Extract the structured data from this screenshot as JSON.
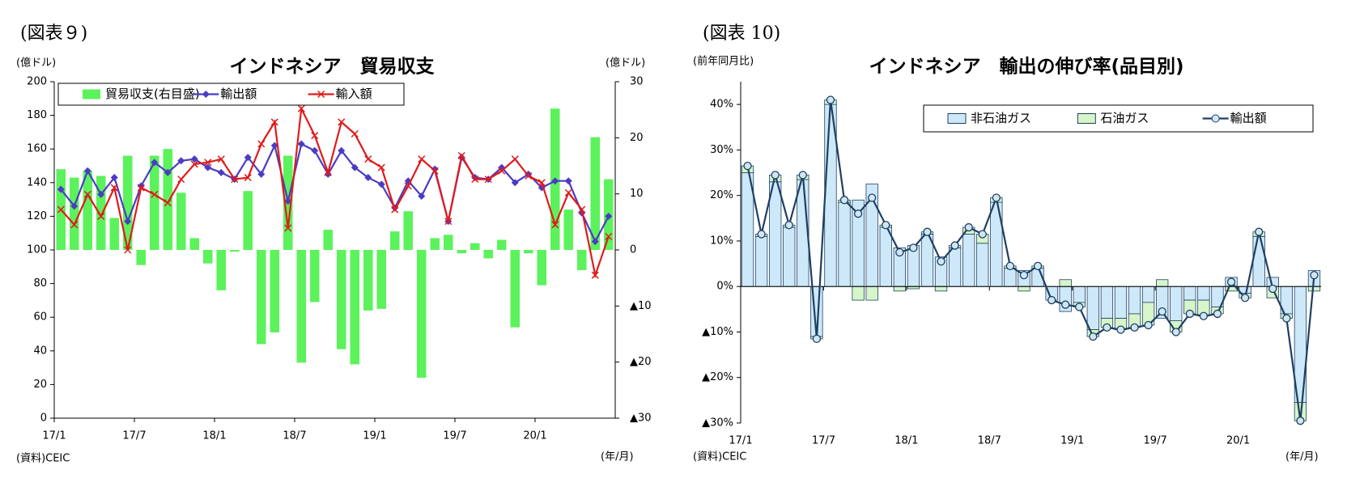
{
  "chart_data": [
    {
      "type": "combo",
      "figure_label": "(図表９)",
      "title": "インドネシア　貿易収支",
      "y_label": "(億ドル)",
      "y2_label": "(億ドル)",
      "x_label": "(年/月)",
      "source": "(資料)CEIC",
      "categories": [
        "17/1",
        null,
        null,
        null,
        null,
        null,
        "17/7",
        null,
        null,
        null,
        null,
        null,
        "18/1",
        null,
        null,
        null,
        null,
        null,
        "18/7",
        null,
        null,
        null,
        null,
        null,
        "19/1",
        null,
        null,
        null,
        null,
        null,
        "19/7",
        null,
        null,
        null,
        null,
        null,
        "20/1",
        null,
        null,
        null,
        null,
        null
      ],
      "ylim": [
        0,
        200
      ],
      "yticks": [
        0,
        20,
        40,
        60,
        80,
        100,
        120,
        140,
        160,
        180,
        200
      ],
      "y2lim": [
        -30,
        30
      ],
      "y2ticks": [
        {
          "value": -30,
          "label": "▲30"
        },
        {
          "value": -20,
          "label": "▲20"
        },
        {
          "value": -10,
          "label": "▲10"
        },
        0,
        10,
        20,
        30
      ],
      "series": [
        {
          "name": "貿易収支(右目盛)",
          "kind": "bar",
          "axis": "y2",
          "color": "#5cf25c",
          "values": [
            14.4,
            12.9,
            14.1,
            13.2,
            5.7,
            16.8,
            -2.7,
            16.8,
            18,
            10.2,
            2.1,
            -2.4,
            -7.2,
            -0.3,
            10.5,
            -16.8,
            -14.7,
            16.8,
            -20.1,
            -9.3,
            3.6,
            -17.7,
            -20.4,
            -10.8,
            -10.5,
            3.3,
            6.9,
            -22.8,
            2.1,
            2.7,
            -0.6,
            1.2,
            -1.5,
            1.8,
            -13.8,
            -0.6,
            -6.3,
            25.2,
            7.2,
            -3.6,
            20.1,
            12.6
          ]
        },
        {
          "name": "輸出額",
          "kind": "line",
          "marker": "diamond",
          "color": "#4a3cc4",
          "values": [
            136,
            126,
            147,
            133,
            143,
            117,
            138,
            152,
            146,
            153,
            154,
            149,
            146,
            142,
            155,
            145,
            162,
            129,
            163,
            159,
            145,
            159,
            149,
            143,
            139,
            125,
            141,
            132,
            148,
            117,
            155,
            143,
            142,
            149,
            140,
            145,
            137,
            141,
            141,
            122,
            105,
            120
          ]
        },
        {
          "name": "輸入額",
          "kind": "line",
          "marker": "cross",
          "color": "#e01b1b",
          "values": [
            124,
            115,
            133,
            120,
            137,
            100,
            137,
            133,
            128,
            142,
            151,
            152,
            154,
            142,
            143,
            163,
            176,
            113,
            184,
            168,
            146,
            176,
            169,
            154,
            149,
            124,
            138,
            154,
            147,
            117,
            156,
            142,
            142,
            147,
            154,
            144,
            140,
            115,
            134,
            124,
            85,
            108
          ]
        }
      ]
    },
    {
      "type": "combo",
      "stacked": true,
      "figure_label": "(図表 10)",
      "title": "インドネシア　輸出の伸び率(品目別)",
      "y_label": "(前年同月比)",
      "x_label": "(年/月)",
      "source": "(資料)CEIC",
      "categories": [
        "17/1",
        null,
        null,
        null,
        null,
        null,
        "17/7",
        null,
        null,
        null,
        null,
        null,
        "18/1",
        null,
        null,
        null,
        null,
        null,
        "18/7",
        null,
        null,
        null,
        null,
        null,
        "19/1",
        null,
        null,
        null,
        null,
        null,
        "19/7",
        null,
        null,
        null,
        null,
        null,
        "20/1",
        null,
        null,
        null,
        null,
        null
      ],
      "ylim": [
        -30,
        45
      ],
      "yticks": [
        {
          "value": -30,
          "label": "▲30%"
        },
        {
          "value": -20,
          "label": "▲20%"
        },
        {
          "value": -10,
          "label": "▲10%"
        },
        {
          "value": 0,
          "label": "0%"
        },
        {
          "value": 10,
          "label": "10%"
        },
        {
          "value": 20,
          "label": "20%"
        },
        {
          "value": 30,
          "label": "30%"
        },
        {
          "value": 40,
          "label": "40%"
        }
      ],
      "series": [
        {
          "name": "非石油ガス",
          "kind": "bar",
          "color": "#cde9f9",
          "values": [
            25,
            11,
            23,
            13,
            23.5,
            -11,
            40,
            18.5,
            19,
            22.5,
            13,
            8.5,
            9,
            11.5,
            6.5,
            8.5,
            11.5,
            9.5,
            18.5,
            4,
            3.5,
            4,
            -3,
            -5.5,
            -3.5,
            -9.5,
            -7,
            -7,
            -6,
            -3.5,
            -7,
            -7.5,
            -3,
            -3,
            -4.5,
            2,
            -1.5,
            11,
            2,
            -6,
            -25.5,
            3.5
          ]
        },
        {
          "name": "石油ガス",
          "kind": "bar",
          "color": "#d6f5c9",
          "values": [
            1.5,
            0.5,
            1.5,
            0.5,
            1,
            -0.5,
            1,
            0.5,
            -3,
            -3,
            0.5,
            -1,
            -0.5,
            0.5,
            -1,
            0.5,
            1.5,
            2,
            1,
            0.5,
            -1,
            0.5,
            0,
            1.5,
            -1,
            -1.5,
            -2,
            -2.5,
            -3,
            -5,
            1.5,
            -2.5,
            -3,
            -3.5,
            -1.5,
            -1,
            -1,
            1,
            -2.5,
            -1,
            -4,
            -1
          ]
        },
        {
          "name": "輸出額",
          "kind": "line",
          "marker": "circle",
          "color": "#1f3f63",
          "values": [
            26.5,
            11.5,
            24.5,
            13.5,
            24.5,
            -11.5,
            41,
            19,
            16,
            19.5,
            13.5,
            7.5,
            8.5,
            12,
            5.5,
            9,
            13,
            11.5,
            19.5,
            4.5,
            2.5,
            4.5,
            -3,
            -4,
            -4.5,
            -11,
            -9,
            -9.5,
            -9,
            -8.5,
            -5.5,
            -10,
            -6,
            -6.5,
            -6,
            1,
            -2.5,
            12,
            -0.5,
            -7,
            -29.5,
            2.5
          ]
        }
      ]
    }
  ]
}
